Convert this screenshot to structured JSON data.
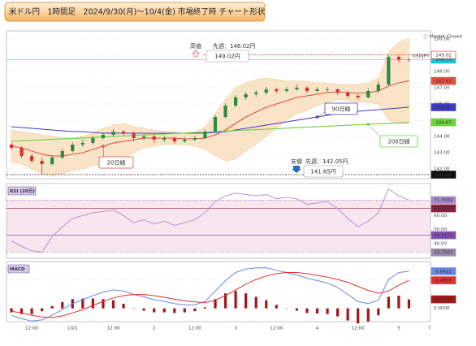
{
  "chart_data": [
    {
      "type": "candlestick",
      "title": "米ドル円　1時間足　2024/9/30(月)〜10/4(金) 市場終了時 チャート形状",
      "categories": [
        null,
        null,
        "12:00",
        null,
        null,
        null,
        "10/1",
        null,
        null,
        null,
        "12:00",
        null,
        null,
        null,
        "2",
        null,
        null,
        null,
        "12:00",
        null,
        null,
        null,
        "3",
        null,
        null,
        null,
        "12:00",
        null,
        null,
        null,
        "4",
        null,
        null,
        null,
        "12:00",
        null,
        null,
        null,
        "5",
        null,
        null,
        "7"
      ],
      "open": [
        143.5,
        143.3,
        142.8,
        142.5,
        142.3,
        142.7,
        143.1,
        143.5,
        143.6,
        143.9,
        144.1,
        144.3,
        144.2,
        143.9,
        144.0,
        143.8,
        143.9,
        143.7,
        143.8,
        143.9,
        144.3,
        145.2,
        145.9,
        146.4,
        146.6,
        146.7,
        146.9,
        146.8,
        146.9,
        147.0,
        146.8,
        146.9,
        146.9,
        146.7,
        146.5,
        146.4,
        146.8,
        147.2,
        148.9,
        148.7,
        null,
        null
      ],
      "high": [
        143.65,
        143.4,
        142.95,
        142.7,
        142.85,
        143.25,
        143.65,
        143.8,
        144.05,
        144.25,
        144.45,
        144.4,
        144.3,
        144.15,
        144.1,
        144.05,
        144.0,
        143.95,
        144.05,
        144.45,
        145.35,
        146.05,
        146.55,
        146.75,
        146.85,
        147.05,
        147.0,
        147.05,
        147.2,
        147.1,
        147.05,
        147.05,
        146.95,
        146.8,
        146.6,
        146.95,
        147.4,
        149.02,
        149.0,
        148.85,
        null,
        null
      ],
      "low": [
        143.15,
        142.65,
        142.35,
        141.65,
        142.2,
        142.6,
        143.0,
        143.35,
        143.5,
        143.8,
        143.95,
        144.05,
        143.7,
        143.75,
        143.6,
        143.65,
        143.55,
        143.6,
        143.7,
        143.85,
        144.25,
        145.1,
        145.8,
        146.25,
        146.45,
        146.55,
        146.65,
        146.7,
        146.8,
        146.65,
        146.7,
        146.75,
        146.55,
        146.35,
        146.25,
        146.35,
        146.7,
        147.1,
        148.55,
        148.6,
        null,
        null
      ],
      "close": [
        143.3,
        142.8,
        142.5,
        142.3,
        142.7,
        143.1,
        143.5,
        143.6,
        143.9,
        144.1,
        144.3,
        144.2,
        143.9,
        144.0,
        143.8,
        143.9,
        143.7,
        143.8,
        143.9,
        144.3,
        145.2,
        145.9,
        146.4,
        146.6,
        146.7,
        146.9,
        146.8,
        146.9,
        147.0,
        146.8,
        146.9,
        146.9,
        146.7,
        146.5,
        146.4,
        146.8,
        147.2,
        148.9,
        148.7,
        148.73,
        null,
        null
      ],
      "up_color": "#2b8a3e",
      "down_color": "#d9302a",
      "series": [
        {
          "name": "20日線",
          "color": "#e0503c",
          "last_label": "147.42",
          "values": [
            143.4,
            143.3,
            143.1,
            142.9,
            142.8,
            142.8,
            142.9,
            143.0,
            143.2,
            143.4,
            143.6,
            143.7,
            143.8,
            143.9,
            143.9,
            143.9,
            143.9,
            143.85,
            143.85,
            143.9,
            144.1,
            144.4,
            144.8,
            145.2,
            145.5,
            145.8,
            146.0,
            146.2,
            146.4,
            146.5,
            146.6,
            146.7,
            146.75,
            146.7,
            146.65,
            146.7,
            146.8,
            147.1,
            147.3,
            147.42,
            null,
            null
          ]
        },
        {
          "name": "90日線",
          "color": "#3c3cc8",
          "last_label": "145.80",
          "values": [
            144.6,
            144.55,
            144.5,
            144.45,
            144.4,
            144.35,
            144.3,
            144.3,
            144.25,
            144.2,
            144.2,
            144.2,
            144.2,
            144.2,
            144.2,
            144.2,
            144.2,
            144.2,
            144.2,
            144.2,
            144.25,
            144.3,
            144.4,
            144.5,
            144.6,
            144.7,
            144.8,
            144.9,
            145.0,
            145.1,
            145.2,
            145.3,
            145.4,
            145.5,
            145.55,
            145.6,
            145.65,
            145.7,
            145.75,
            145.8,
            null,
            null
          ]
        },
        {
          "name": "200日線",
          "color": "#6cd23c",
          "last_label": "144.87",
          "values": [
            143.7,
            143.73,
            143.76,
            143.79,
            143.82,
            143.85,
            143.88,
            143.91,
            143.94,
            143.97,
            144.0,
            144.03,
            144.06,
            144.09,
            144.12,
            144.15,
            144.18,
            144.21,
            144.24,
            144.27,
            144.3,
            144.33,
            144.36,
            144.39,
            144.42,
            144.45,
            144.48,
            144.51,
            144.54,
            144.57,
            144.6,
            144.63,
            144.66,
            144.69,
            144.72,
            144.75,
            144.78,
            144.81,
            144.84,
            144.87,
            null,
            null
          ]
        }
      ],
      "band": {
        "color": "#f7d6aa",
        "upper": [
          144.4,
          144.3,
          144.2,
          144.1,
          144.0,
          143.9,
          143.9,
          144.0,
          144.2,
          144.5,
          144.7,
          144.8,
          144.6,
          144.5,
          144.4,
          144.3,
          144.3,
          144.2,
          144.3,
          144.6,
          145.4,
          146.3,
          147.0,
          147.3,
          147.5,
          147.6,
          147.5,
          147.4,
          147.4,
          147.4,
          147.3,
          147.3,
          147.2,
          147.2,
          147.2,
          147.3,
          147.6,
          149.2,
          149.8,
          150.0,
          null,
          null
        ],
        "lower": [
          142.4,
          142.3,
          142.0,
          141.7,
          141.6,
          141.7,
          141.9,
          142.0,
          142.2,
          142.3,
          142.5,
          142.6,
          143.0,
          143.3,
          143.4,
          143.5,
          143.5,
          143.5,
          143.4,
          143.2,
          142.8,
          142.5,
          142.6,
          143.1,
          143.5,
          144.0,
          144.5,
          145.0,
          145.4,
          145.6,
          145.9,
          146.1,
          146.3,
          146.2,
          146.1,
          146.1,
          146.0,
          145.0,
          144.8,
          144.8,
          null,
          null
        ]
      },
      "symbol": "USDJPY",
      "current_color": "#19c3d6",
      "high_note": {
        "label": "高値",
        "previous": "先週：146.02円",
        "value_label": "149.02円",
        "color": "#e03030"
      },
      "low_note": {
        "label": "安値",
        "previous": "先週：142.05円",
        "value_label": "141.65円",
        "color": "#2a6cc0"
      },
      "status": "Market Closed",
      "ylim": [
        141.4,
        150.5
      ],
      "yticks": [
        {
          "value": 142,
          "label": "142.00"
        },
        {
          "value": 143,
          "label": "143.00"
        },
        {
          "value": 144,
          "label": "144.00"
        },
        {
          "value": 145,
          "label": "145.00"
        },
        {
          "value": 146,
          "label": "146.00"
        },
        {
          "value": 147,
          "label": "147.00"
        },
        {
          "value": 148,
          "label": "148.00"
        },
        {
          "value": 149,
          "label": "149.00"
        },
        {
          "value": 150,
          "label": "150.00"
        }
      ],
      "grid": true
    },
    {
      "type": "line",
      "title": "RSI (20日)",
      "color": "#b98fd0",
      "values": [
        42,
        38,
        35,
        34,
        45,
        52,
        58,
        60,
        62,
        63,
        64,
        60,
        55,
        57,
        54,
        56,
        53,
        55,
        57,
        62,
        70,
        74,
        76,
        75,
        74,
        75,
        72,
        73,
        72,
        68,
        69,
        70,
        65,
        58,
        52,
        56,
        62,
        79,
        74,
        71,
        null,
        null
      ],
      "levels": [
        {
          "value": 71.0069,
          "color": "#a58cc8"
        },
        {
          "value": 65.1249,
          "color": "#8a2040"
        },
        {
          "value": 46.0151,
          "color": "#8050b0"
        },
        {
          "value": 33.7507,
          "color": "#9a88b0"
        }
      ],
      "fill": "#f8e6ef",
      "ylim": [
        29.6,
        82.8
      ],
      "yticks": [
        {
          "value": 40,
          "label": "40.00"
        },
        {
          "value": 50,
          "label": "50.00"
        },
        {
          "value": 60,
          "label": "60.00"
        },
        {
          "value": 70,
          "label": "70.00"
        }
      ],
      "grid": true
    },
    {
      "type": "line",
      "title": "MACD",
      "series": [
        {
          "color": "#6a86e8",
          "values": [
            -0.12,
            -0.18,
            -0.22,
            -0.2,
            -0.12,
            -0.02,
            0.08,
            0.15,
            0.22,
            0.28,
            0.32,
            0.3,
            0.24,
            0.2,
            0.15,
            0.12,
            0.08,
            0.06,
            0.06,
            0.12,
            0.3,
            0.48,
            0.62,
            0.68,
            0.7,
            0.7,
            0.66,
            0.62,
            0.58,
            0.52,
            0.48,
            0.44,
            0.36,
            0.24,
            0.12,
            0.08,
            0.14,
            0.5,
            0.62,
            0.6413,
            null,
            null
          ]
        },
        {
          "color": "#e03030",
          "values": [
            -0.05,
            -0.08,
            -0.12,
            -0.15,
            -0.16,
            -0.13,
            -0.08,
            -0.02,
            0.05,
            0.12,
            0.18,
            0.22,
            0.24,
            0.24,
            0.22,
            0.19,
            0.16,
            0.13,
            0.11,
            0.1,
            0.14,
            0.22,
            0.32,
            0.42,
            0.5,
            0.56,
            0.6,
            0.62,
            0.62,
            0.6,
            0.57,
            0.54,
            0.5,
            0.45,
            0.38,
            0.31,
            0.26,
            0.3,
            0.4,
            0.4857,
            null,
            null
          ]
        },
        {
          "color": "#a01818",
          "style": "bar",
          "values": [
            -0.07,
            -0.1,
            -0.1,
            -0.05,
            0.04,
            0.11,
            0.16,
            0.17,
            0.17,
            0.16,
            0.14,
            0.08,
            0.0,
            -0.04,
            -0.07,
            -0.07,
            -0.08,
            -0.07,
            -0.05,
            0.02,
            0.16,
            0.26,
            0.3,
            0.26,
            0.2,
            0.14,
            0.06,
            0.0,
            -0.04,
            -0.08,
            -0.09,
            -0.1,
            -0.14,
            -0.21,
            -0.26,
            -0.23,
            -0.12,
            0.2,
            0.22,
            0.1556,
            null,
            null
          ]
        }
      ],
      "ylim": [
        -0.23,
        0.81
      ],
      "yticks": [
        {
          "value": 0,
          "label": "0.0000"
        },
        {
          "value": 0.5,
          "label": "0.5000"
        }
      ],
      "grid": true
    }
  ]
}
